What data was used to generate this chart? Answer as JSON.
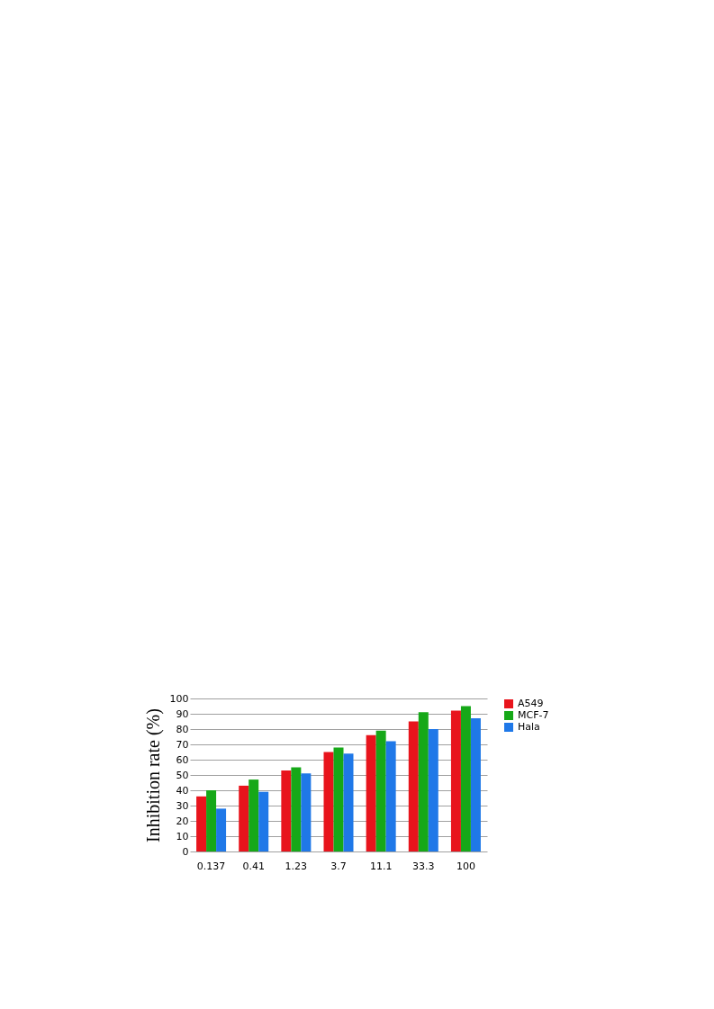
{
  "chart_data": {
    "type": "bar",
    "ylabel": "Inhibition rate (%)",
    "categories": [
      "0.137",
      "0.41",
      "1.23",
      "3.7",
      "11.1",
      "33.3",
      "100"
    ],
    "series": [
      {
        "name": "A549",
        "color": "#e8141c",
        "values": [
          36,
          43,
          53,
          65,
          76,
          85,
          92
        ]
      },
      {
        "name": "MCF-7",
        "color": "#16a818",
        "values": [
          40,
          47,
          55,
          68,
          79,
          91,
          95
        ]
      },
      {
        "name": "Hala",
        "color": "#1f78e8",
        "values": [
          28,
          39,
          51,
          64,
          72,
          80,
          87
        ]
      }
    ],
    "ylim": [
      0,
      100
    ],
    "yticks": [
      0,
      10,
      20,
      30,
      40,
      50,
      60,
      70,
      80,
      90,
      100
    ],
    "grid": "y",
    "legend": "right"
  }
}
